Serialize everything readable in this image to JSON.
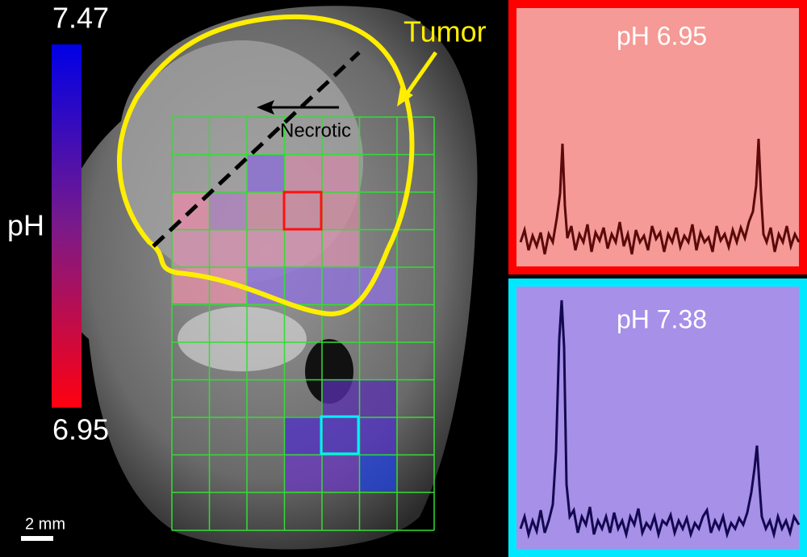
{
  "colorbar": {
    "max": "7.47",
    "min": "6.95",
    "label": "pH"
  },
  "annotations": {
    "tumor": "Tumor",
    "necrotic": "Necrotic",
    "scale_bar": "2 mm"
  },
  "spectra": [
    {
      "title": "pH 6.95"
    },
    {
      "title": "pH 7.38"
    }
  ]
}
